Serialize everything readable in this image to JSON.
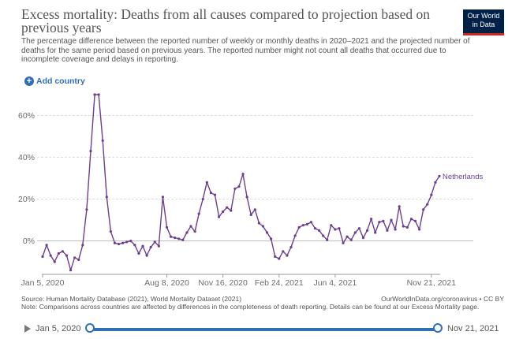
{
  "header": {
    "title": "Excess mortality: Deaths from all causes compared to projection based on previous years",
    "subtitle": "The percentage difference between the reported number of weekly or monthly deaths in 2020–2021 and the projected number of deaths for the same period based on previous years. The reported number might not count all deaths that occurred due to incomplete coverage and delays in reporting.",
    "logo_line1": "Our World",
    "logo_line2": "in Data"
  },
  "controls": {
    "add_country": "Add country"
  },
  "footer": {
    "source": "Source: Human Mortality Database (2021), World Mortality Dataset (2021)",
    "source_right": "OurWorldInData.org/coronavirus • CC BY",
    "note": "Note: Comparisons across countries are affected by differences in the completeness of death reporting. Details can be found at our Excess Mortality page."
  },
  "timeline": {
    "start": "Jan 5, 2020",
    "end": "Nov 21, 2021"
  },
  "colors": {
    "series": "#6d3e91",
    "accent": "#2f6fb5",
    "grid": "#dddddd",
    "logo_bg": "#002147",
    "logo_bar": "#ce261e"
  },
  "chart_data": {
    "type": "line",
    "title": "Excess mortality: Deaths from all causes compared to projection based on previous years",
    "xlabel": "",
    "ylabel": "",
    "x_start": "Jan 5, 2020",
    "x_end": "Nov 21, 2021",
    "x_interval": "weekly",
    "xticks": [
      {
        "label": "Jan 5, 2020",
        "index": 0
      },
      {
        "label": "Aug 8, 2020",
        "index": 31
      },
      {
        "label": "Nov 16, 2020",
        "index": 45
      },
      {
        "label": "Feb 24, 2021",
        "index": 59
      },
      {
        "label": "Jun 4, 2021",
        "index": 73
      },
      {
        "label": "Nov 21, 2021",
        "index": 97
      }
    ],
    "yticks": [
      0,
      20,
      40,
      60
    ],
    "ytick_labels": [
      "0%",
      "20%",
      "40%",
      "60%"
    ],
    "ylim": [
      -16,
      70
    ],
    "grid": true,
    "series": [
      {
        "name": "Netherlands",
        "values": [
          -7.5,
          -2,
          -7,
          -10,
          -6,
          -5,
          -7,
          -14,
          -8,
          -9,
          -2,
          15,
          43,
          70,
          70,
          48,
          21,
          4.5,
          -1,
          -1.5,
          -1,
          -0.5,
          0,
          -2,
          -6,
          -2.5,
          -7,
          -3,
          -0.5,
          -2.5,
          21,
          6.5,
          2,
          1.5,
          1,
          0.5,
          4,
          7,
          4.5,
          13,
          20,
          28,
          23,
          22,
          11.5,
          14,
          16,
          14.5,
          25,
          26,
          32,
          21,
          12.5,
          15,
          8.5,
          7,
          4,
          1,
          -7.5,
          -8.5,
          -5,
          -7,
          -3,
          2.5,
          6.5,
          7.5,
          8,
          9,
          6,
          5,
          2.5,
          0.5,
          7.5,
          5.5,
          6,
          -1,
          2,
          0.5,
          4,
          6,
          1.5,
          5,
          10.5,
          4,
          9,
          9.5,
          5,
          10,
          5.5,
          16.5,
          7,
          6.5,
          10.5,
          9.5,
          5.5,
          15,
          17.5,
          22,
          28,
          31
        ]
      }
    ],
    "annotations": [
      "Netherlands"
    ]
  }
}
